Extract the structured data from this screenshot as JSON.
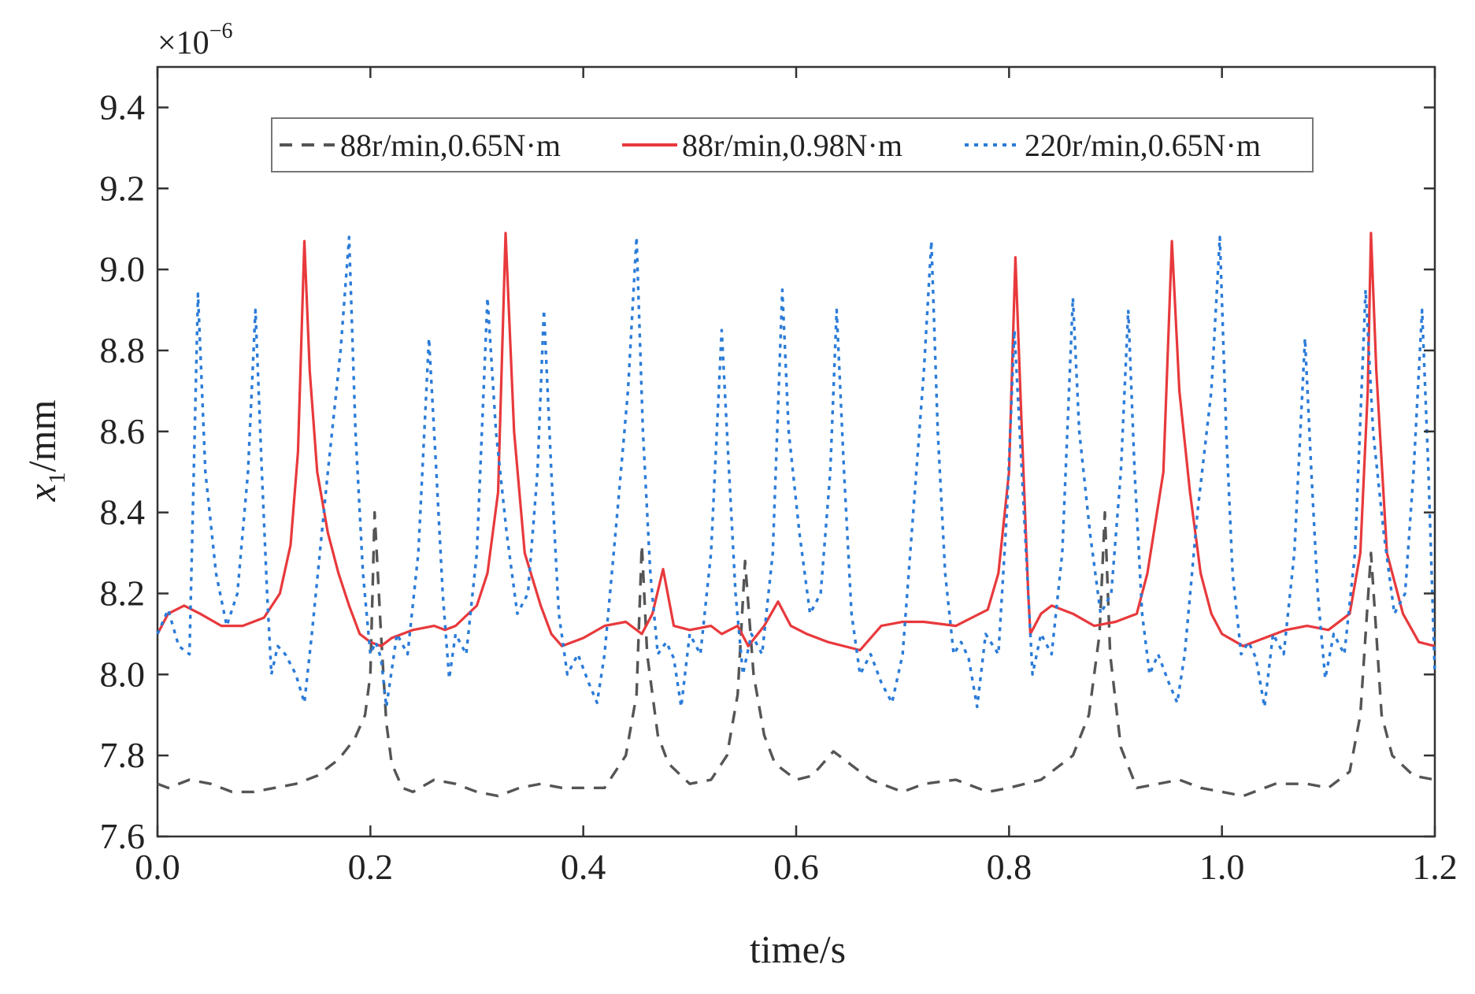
{
  "chart_data": {
    "type": "line",
    "title": "",
    "xlabel": "time/s",
    "ylabel_var": "x",
    "ylabel_sub": "1",
    "ylabel_unit": "/mm",
    "y_exponent_base": "×10",
    "y_exponent_power": "−6",
    "xlim": [
      0.0,
      1.2
    ],
    "ylim": [
      7.6,
      9.5
    ],
    "xticks": [
      "0.0",
      "0.2",
      "0.4",
      "0.6",
      "0.8",
      "1.0",
      "1.2"
    ],
    "yticks": [
      "7.6",
      "7.8",
      "8.0",
      "8.2",
      "8.4",
      "8.6",
      "8.8",
      "9.0",
      "9.2",
      "9.4"
    ],
    "grid": false,
    "legend_position": "top",
    "series": [
      {
        "name": "88r/min,0.65N·m",
        "color": "#555555",
        "style": "dashed",
        "points": [
          [
            0.0,
            7.73
          ],
          [
            0.01,
            7.72
          ],
          [
            0.03,
            7.74
          ],
          [
            0.05,
            7.73
          ],
          [
            0.07,
            7.71
          ],
          [
            0.09,
            7.71
          ],
          [
            0.11,
            7.72
          ],
          [
            0.13,
            7.73
          ],
          [
            0.15,
            7.75
          ],
          [
            0.17,
            7.79
          ],
          [
            0.185,
            7.84
          ],
          [
            0.195,
            7.9
          ],
          [
            0.2,
            8.0
          ],
          [
            0.204,
            8.4
          ],
          [
            0.21,
            8.1
          ],
          [
            0.215,
            7.88
          ],
          [
            0.22,
            7.78
          ],
          [
            0.23,
            7.72
          ],
          [
            0.24,
            7.71
          ],
          [
            0.26,
            7.74
          ],
          [
            0.28,
            7.73
          ],
          [
            0.3,
            7.71
          ],
          [
            0.32,
            7.7
          ],
          [
            0.34,
            7.72
          ],
          [
            0.36,
            7.73
          ],
          [
            0.38,
            7.72
          ],
          [
            0.4,
            7.72
          ],
          [
            0.42,
            7.72
          ],
          [
            0.44,
            7.8
          ],
          [
            0.45,
            7.95
          ],
          [
            0.455,
            8.32
          ],
          [
            0.46,
            8.05
          ],
          [
            0.47,
            7.85
          ],
          [
            0.48,
            7.78
          ],
          [
            0.5,
            7.73
          ],
          [
            0.52,
            7.74
          ],
          [
            0.535,
            7.8
          ],
          [
            0.545,
            7.95
          ],
          [
            0.552,
            8.28
          ],
          [
            0.56,
            8.0
          ],
          [
            0.57,
            7.85
          ],
          [
            0.58,
            7.78
          ],
          [
            0.6,
            7.74
          ],
          [
            0.615,
            7.75
          ],
          [
            0.635,
            7.81
          ],
          [
            0.65,
            7.78
          ],
          [
            0.67,
            7.74
          ],
          [
            0.69,
            7.72
          ],
          [
            0.7,
            7.71
          ],
          [
            0.72,
            7.73
          ],
          [
            0.75,
            7.74
          ],
          [
            0.78,
            7.71
          ],
          [
            0.8,
            7.72
          ],
          [
            0.83,
            7.74
          ],
          [
            0.86,
            7.8
          ],
          [
            0.875,
            7.9
          ],
          [
            0.885,
            8.1
          ],
          [
            0.89,
            8.4
          ],
          [
            0.895,
            8.05
          ],
          [
            0.905,
            7.82
          ],
          [
            0.92,
            7.72
          ],
          [
            0.94,
            7.73
          ],
          [
            0.96,
            7.74
          ],
          [
            0.98,
            7.72
          ],
          [
            1.0,
            7.71
          ],
          [
            1.02,
            7.7
          ],
          [
            1.05,
            7.73
          ],
          [
            1.08,
            7.73
          ],
          [
            1.1,
            7.72
          ],
          [
            1.12,
            7.76
          ],
          [
            1.13,
            7.9
          ],
          [
            1.135,
            8.1
          ],
          [
            1.14,
            8.3
          ],
          [
            1.145,
            8.1
          ],
          [
            1.15,
            7.9
          ],
          [
            1.16,
            7.8
          ],
          [
            1.18,
            7.75
          ],
          [
            1.2,
            7.74
          ]
        ]
      },
      {
        "name": "88r/min,0.98N·m",
        "color": "#e8393c",
        "style": "solid",
        "points": [
          [
            0.0,
            8.1
          ],
          [
            0.01,
            8.15
          ],
          [
            0.025,
            8.17
          ],
          [
            0.04,
            8.15
          ],
          [
            0.06,
            8.12
          ],
          [
            0.08,
            8.12
          ],
          [
            0.1,
            8.14
          ],
          [
            0.115,
            8.2
          ],
          [
            0.125,
            8.32
          ],
          [
            0.132,
            8.55
          ],
          [
            0.138,
            9.07
          ],
          [
            0.143,
            8.75
          ],
          [
            0.15,
            8.5
          ],
          [
            0.16,
            8.35
          ],
          [
            0.17,
            8.25
          ],
          [
            0.18,
            8.17
          ],
          [
            0.19,
            8.1
          ],
          [
            0.2,
            8.08
          ],
          [
            0.21,
            8.07
          ],
          [
            0.22,
            8.09
          ],
          [
            0.24,
            8.11
          ],
          [
            0.26,
            8.12
          ],
          [
            0.27,
            8.11
          ],
          [
            0.28,
            8.12
          ],
          [
            0.3,
            8.17
          ],
          [
            0.31,
            8.25
          ],
          [
            0.32,
            8.45
          ],
          [
            0.327,
            9.09
          ],
          [
            0.335,
            8.6
          ],
          [
            0.345,
            8.3
          ],
          [
            0.36,
            8.17
          ],
          [
            0.37,
            8.1
          ],
          [
            0.38,
            8.07
          ],
          [
            0.4,
            8.09
          ],
          [
            0.42,
            8.12
          ],
          [
            0.44,
            8.13
          ],
          [
            0.455,
            8.1
          ],
          [
            0.465,
            8.15
          ],
          [
            0.475,
            8.26
          ],
          [
            0.485,
            8.12
          ],
          [
            0.5,
            8.11
          ],
          [
            0.52,
            8.12
          ],
          [
            0.53,
            8.1
          ],
          [
            0.545,
            8.12
          ],
          [
            0.555,
            8.07
          ],
          [
            0.57,
            8.12
          ],
          [
            0.583,
            8.18
          ],
          [
            0.595,
            8.12
          ],
          [
            0.61,
            8.1
          ],
          [
            0.63,
            8.08
          ],
          [
            0.66,
            8.06
          ],
          [
            0.68,
            8.12
          ],
          [
            0.7,
            8.13
          ],
          [
            0.72,
            8.13
          ],
          [
            0.75,
            8.12
          ],
          [
            0.78,
            8.16
          ],
          [
            0.79,
            8.25
          ],
          [
            0.8,
            8.5
          ],
          [
            0.806,
            9.03
          ],
          [
            0.812,
            8.6
          ],
          [
            0.818,
            8.2
          ],
          [
            0.82,
            8.1
          ],
          [
            0.83,
            8.15
          ],
          [
            0.84,
            8.17
          ],
          [
            0.86,
            8.15
          ],
          [
            0.88,
            8.12
          ],
          [
            0.9,
            8.13
          ],
          [
            0.92,
            8.15
          ],
          [
            0.93,
            8.25
          ],
          [
            0.945,
            8.5
          ],
          [
            0.953,
            9.07
          ],
          [
            0.96,
            8.7
          ],
          [
            0.97,
            8.45
          ],
          [
            0.98,
            8.25
          ],
          [
            0.99,
            8.15
          ],
          [
            1.0,
            8.1
          ],
          [
            1.02,
            8.07
          ],
          [
            1.04,
            8.09
          ],
          [
            1.06,
            8.11
          ],
          [
            1.08,
            8.12
          ],
          [
            1.1,
            8.11
          ],
          [
            1.12,
            8.15
          ],
          [
            1.13,
            8.3
          ],
          [
            1.137,
            8.7
          ],
          [
            1.14,
            9.09
          ],
          [
            1.145,
            8.75
          ],
          [
            1.155,
            8.3
          ],
          [
            1.17,
            8.15
          ],
          [
            1.185,
            8.08
          ],
          [
            1.2,
            8.07
          ]
        ]
      },
      {
        "name": "220r/min,0.65N·m",
        "color": "#2a7bd8",
        "style": "dotted",
        "points": [
          [
            0.0,
            8.1
          ],
          [
            0.01,
            8.16
          ],
          [
            0.02,
            8.07
          ],
          [
            0.03,
            8.05
          ],
          [
            0.038,
            8.94
          ],
          [
            0.045,
            8.5
          ],
          [
            0.055,
            8.25
          ],
          [
            0.065,
            8.12
          ],
          [
            0.075,
            8.2
          ],
          [
            0.085,
            8.5
          ],
          [
            0.092,
            8.9
          ],
          [
            0.098,
            8.5
          ],
          [
            0.103,
            8.2
          ],
          [
            0.107,
            8.0
          ],
          [
            0.113,
            8.07
          ],
          [
            0.12,
            8.05
          ],
          [
            0.13,
            8.0
          ],
          [
            0.138,
            7.93
          ],
          [
            0.145,
            8.1
          ],
          [
            0.16,
            8.5
          ],
          [
            0.172,
            8.8
          ],
          [
            0.18,
            9.08
          ],
          [
            0.186,
            8.6
          ],
          [
            0.193,
            8.25
          ],
          [
            0.2,
            8.05
          ],
          [
            0.205,
            8.08
          ],
          [
            0.21,
            8.04
          ],
          [
            0.215,
            7.92
          ],
          [
            0.225,
            8.1
          ],
          [
            0.235,
            8.05
          ],
          [
            0.245,
            8.3
          ],
          [
            0.255,
            8.83
          ],
          [
            0.262,
            8.5
          ],
          [
            0.268,
            8.2
          ],
          [
            0.274,
            7.99
          ],
          [
            0.28,
            8.1
          ],
          [
            0.29,
            8.05
          ],
          [
            0.3,
            8.3
          ],
          [
            0.31,
            8.93
          ],
          [
            0.318,
            8.6
          ],
          [
            0.328,
            8.35
          ],
          [
            0.338,
            8.15
          ],
          [
            0.348,
            8.2
          ],
          [
            0.357,
            8.5
          ],
          [
            0.363,
            8.9
          ],
          [
            0.37,
            8.5
          ],
          [
            0.377,
            8.15
          ],
          [
            0.385,
            8.0
          ],
          [
            0.395,
            8.05
          ],
          [
            0.405,
            7.98
          ],
          [
            0.413,
            7.93
          ],
          [
            0.42,
            8.05
          ],
          [
            0.432,
            8.4
          ],
          [
            0.442,
            8.7
          ],
          [
            0.45,
            9.08
          ],
          [
            0.456,
            8.6
          ],
          [
            0.463,
            8.25
          ],
          [
            0.47,
            8.05
          ],
          [
            0.478,
            8.08
          ],
          [
            0.485,
            8.04
          ],
          [
            0.492,
            7.92
          ],
          [
            0.5,
            8.1
          ],
          [
            0.51,
            8.05
          ],
          [
            0.52,
            8.3
          ],
          [
            0.53,
            8.85
          ],
          [
            0.537,
            8.5
          ],
          [
            0.543,
            8.2
          ],
          [
            0.55,
            8.0
          ],
          [
            0.558,
            8.1
          ],
          [
            0.568,
            8.05
          ],
          [
            0.578,
            8.3
          ],
          [
            0.587,
            8.95
          ],
          [
            0.593,
            8.6
          ],
          [
            0.603,
            8.35
          ],
          [
            0.613,
            8.15
          ],
          [
            0.623,
            8.2
          ],
          [
            0.632,
            8.5
          ],
          [
            0.638,
            8.9
          ],
          [
            0.645,
            8.5
          ],
          [
            0.652,
            8.15
          ],
          [
            0.66,
            8.0
          ],
          [
            0.67,
            8.05
          ],
          [
            0.68,
            7.98
          ],
          [
            0.69,
            7.93
          ],
          [
            0.7,
            8.05
          ],
          [
            0.71,
            8.4
          ],
          [
            0.72,
            8.75
          ],
          [
            0.727,
            9.07
          ],
          [
            0.733,
            8.6
          ],
          [
            0.74,
            8.25
          ],
          [
            0.748,
            8.05
          ],
          [
            0.755,
            8.08
          ],
          [
            0.762,
            8.04
          ],
          [
            0.77,
            7.92
          ],
          [
            0.778,
            8.1
          ],
          [
            0.79,
            8.05
          ],
          [
            0.798,
            8.4
          ],
          [
            0.805,
            8.85
          ],
          [
            0.812,
            8.5
          ],
          [
            0.818,
            8.2
          ],
          [
            0.822,
            8.0
          ],
          [
            0.83,
            8.1
          ],
          [
            0.84,
            8.05
          ],
          [
            0.85,
            8.3
          ],
          [
            0.86,
            8.93
          ],
          [
            0.866,
            8.6
          ],
          [
            0.876,
            8.35
          ],
          [
            0.886,
            8.15
          ],
          [
            0.896,
            8.2
          ],
          [
            0.905,
            8.5
          ],
          [
            0.912,
            8.9
          ],
          [
            0.918,
            8.5
          ],
          [
            0.925,
            8.15
          ],
          [
            0.932,
            8.0
          ],
          [
            0.94,
            8.05
          ],
          [
            0.95,
            7.98
          ],
          [
            0.958,
            7.93
          ],
          [
            0.965,
            8.05
          ],
          [
            0.977,
            8.4
          ],
          [
            0.99,
            8.7
          ],
          [
            0.998,
            9.08
          ],
          [
            1.004,
            8.6
          ],
          [
            1.01,
            8.25
          ],
          [
            1.018,
            8.05
          ],
          [
            1.025,
            8.08
          ],
          [
            1.032,
            8.04
          ],
          [
            1.04,
            7.92
          ],
          [
            1.048,
            8.1
          ],
          [
            1.058,
            8.05
          ],
          [
            1.068,
            8.3
          ],
          [
            1.078,
            8.83
          ],
          [
            1.084,
            8.5
          ],
          [
            1.09,
            8.2
          ],
          [
            1.097,
            7.99
          ],
          [
            1.105,
            8.1
          ],
          [
            1.115,
            8.05
          ],
          [
            1.125,
            8.3
          ],
          [
            1.135,
            8.95
          ],
          [
            1.142,
            8.6
          ],
          [
            1.152,
            8.35
          ],
          [
            1.162,
            8.15
          ],
          [
            1.172,
            8.2
          ],
          [
            1.18,
            8.5
          ],
          [
            1.188,
            8.9
          ],
          [
            1.194,
            8.5
          ],
          [
            1.2,
            8.0
          ]
        ]
      }
    ]
  }
}
